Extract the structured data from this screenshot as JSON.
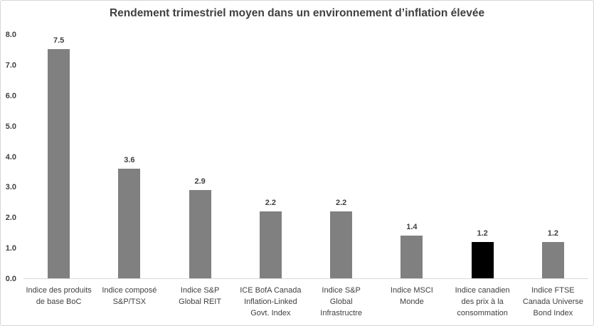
{
  "chart": {
    "title": "Rendement trimestriel moyen dans un environnement d’inflation élevée"
  },
  "chart_data": {
    "type": "bar",
    "title": "Rendement trimestriel moyen dans un environnement d’inflation élevée",
    "categories": [
      "Indice des produits de base BoC",
      "Indice composé S&P/TSX",
      "Indice S&P Global REIT",
      "ICE BofA Canada Inflation-Linked Govt. Index",
      "Indice S&P Global Infrastructre",
      "Indice MSCI Monde",
      "Indice canadien des prix à la consommation",
      "Indice FTSE Canada Universe Bond Index"
    ],
    "category_lines": [
      [
        "Indice des produits",
        "de base BoC"
      ],
      [
        "Indice composé",
        "S&P/TSX"
      ],
      [
        "Indice S&P",
        "Global REIT"
      ],
      [
        "ICE BofA Canada",
        "Inflation-Linked",
        "Govt. Index"
      ],
      [
        "Indice S&P",
        "Global",
        "Infrastructre"
      ],
      [
        "Indice MSCI",
        "Monde"
      ],
      [
        "Indice canadien",
        "des prix à la",
        "consommation"
      ],
      [
        "Indice FTSE",
        "Canada Universe",
        "Bond Index"
      ]
    ],
    "values": [
      7.5,
      3.6,
      2.9,
      2.2,
      2.2,
      1.4,
      1.2,
      1.2
    ],
    "value_labels": [
      "7.5",
      "3.6",
      "2.9",
      "2.2",
      "2.2",
      "1.4",
      "1.2",
      "1.2"
    ],
    "bar_colors": [
      "#808080",
      "#808080",
      "#808080",
      "#808080",
      "#808080",
      "#808080",
      "#000000",
      "#808080"
    ],
    "default_color": "#808080",
    "highlight_color": "#000000",
    "xlabel": "",
    "ylabel": "",
    "ylim": [
      0,
      8
    ],
    "yticks": [
      0.0,
      1.0,
      2.0,
      3.0,
      4.0,
      5.0,
      6.0,
      7.0,
      8.0
    ],
    "ytick_labels": [
      "0.0",
      "1.0",
      "2.0",
      "3.0",
      "4.0",
      "5.0",
      "6.0",
      "7.0",
      "8.0"
    ],
    "grid": false,
    "legend": "none",
    "data_labels_on": true
  }
}
